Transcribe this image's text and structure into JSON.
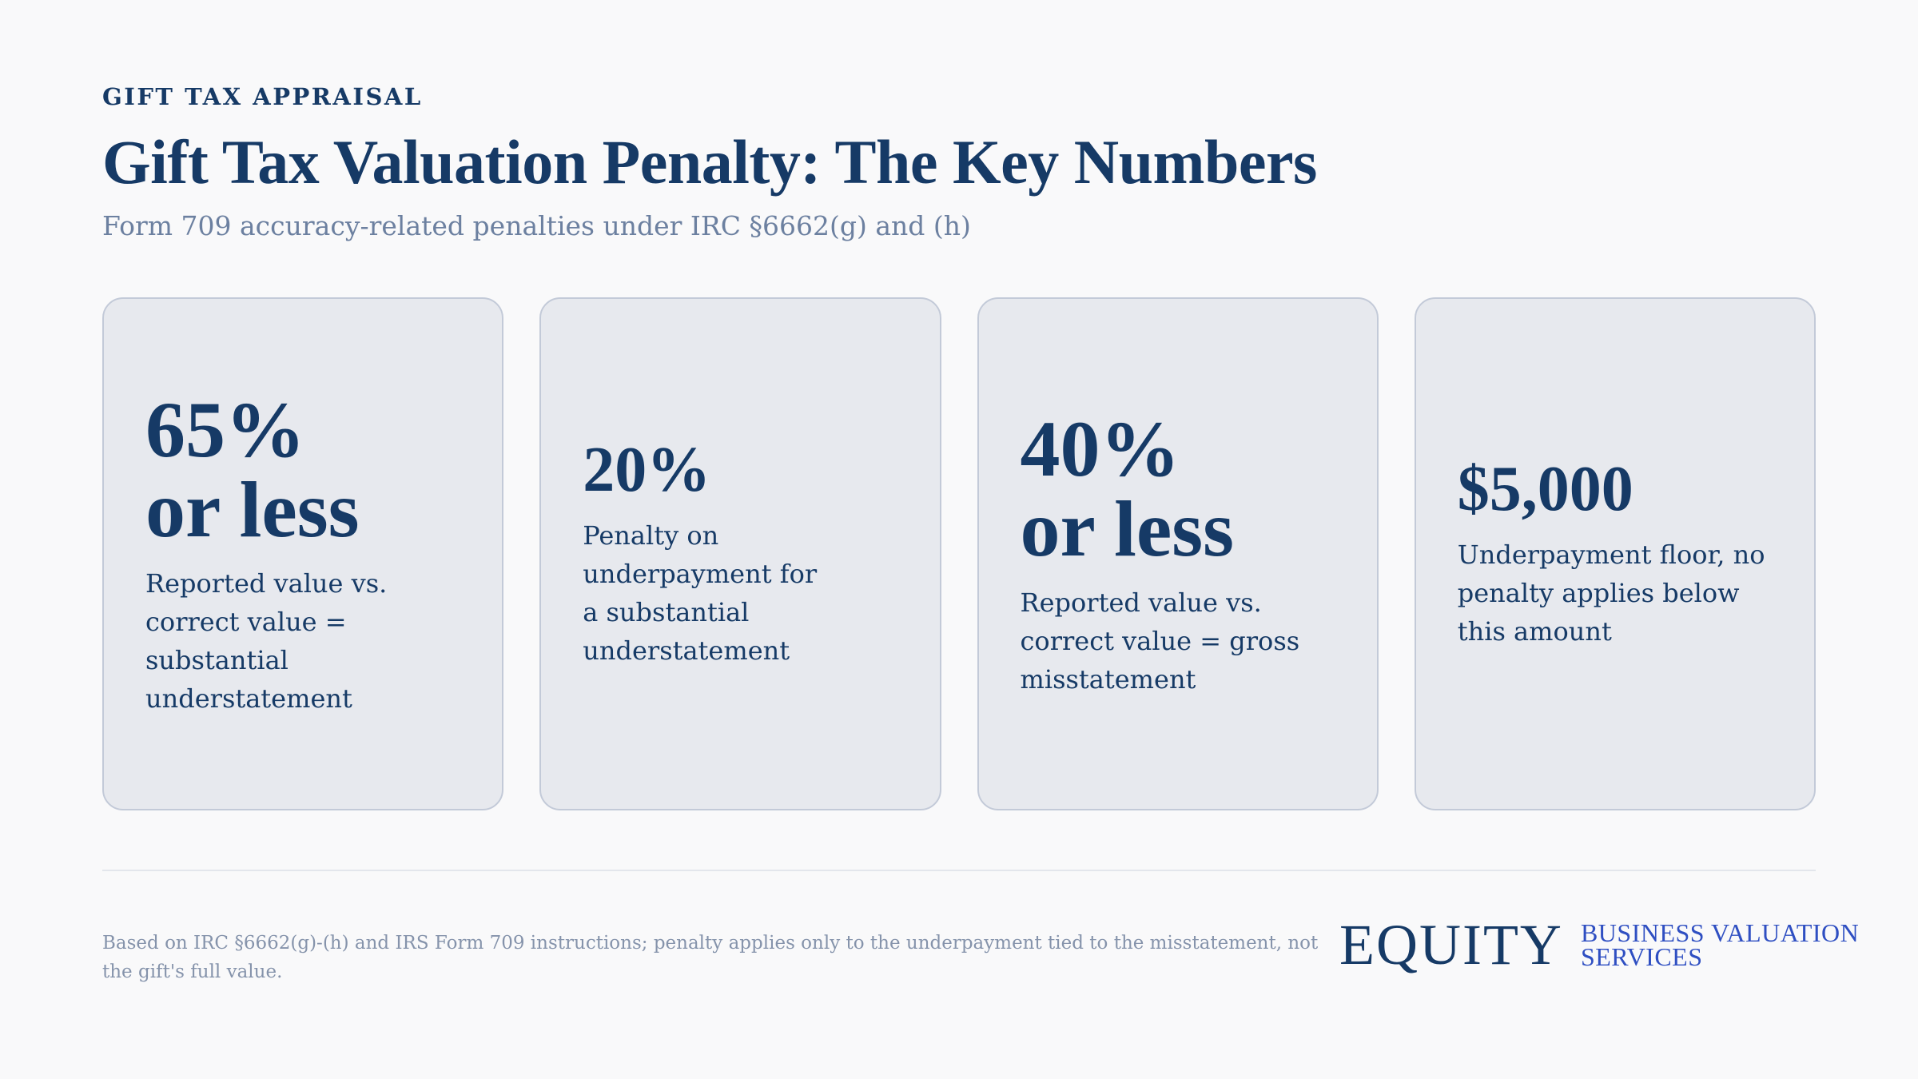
{
  "header": {
    "eyebrow": "GIFT TAX APPRAISAL",
    "title": "Gift Tax Valuation Penalty: The Key Numbers",
    "subtitle": "Form 709 accuracy-related penalties under IRC §6662(g) and (h)"
  },
  "cards": [
    {
      "stat": "65% or less",
      "description": "Reported value vs. correct value = substantial understatement"
    },
    {
      "stat": "20%",
      "description": "Penalty on underpayment for a substantial understatement"
    },
    {
      "stat": "40% or less",
      "description": "Reported value vs. correct value = gross misstatement"
    },
    {
      "stat": "$5,000",
      "description": "Underpayment floor, no penalty applies below this amount"
    }
  ],
  "footer": {
    "note": "Based on IRC §6662(g)-(h) and IRS Form 709 instructions; penalty applies only to the underpayment tied to the misstatement, not the gift's full value.",
    "logo_word": "EQUITY",
    "logo_line1": "BUSINESS VALUATION",
    "logo_line2": "SERVICES"
  },
  "colors": {
    "primary": "#163a66",
    "muted": "#6c80a0",
    "card_bg": "#e7e9ee",
    "accent": "#2f4fc2"
  }
}
